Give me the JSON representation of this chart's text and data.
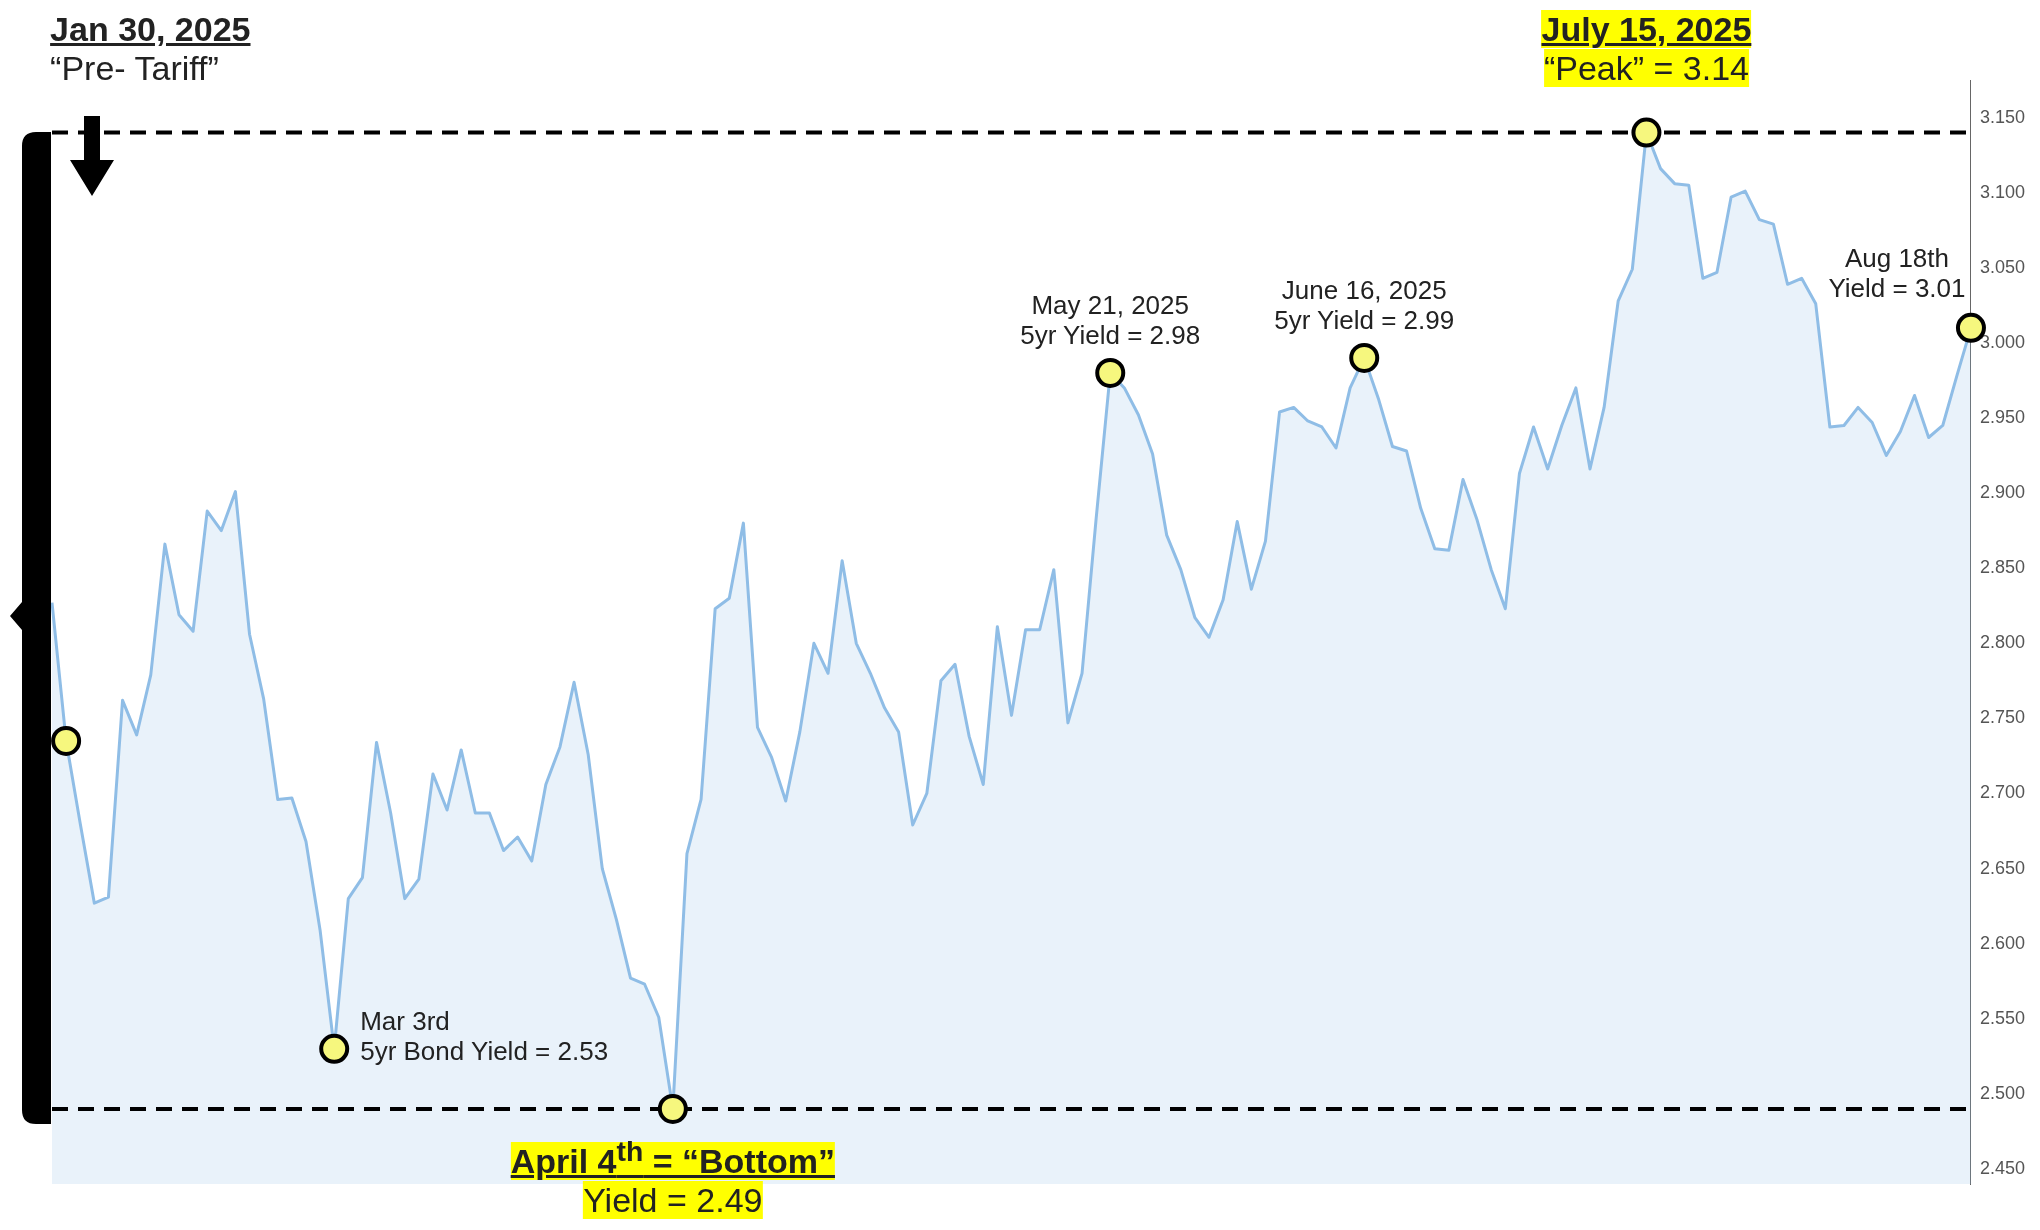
{
  "chart_data": {
    "type": "area",
    "categories": [
      null,
      null,
      null,
      null,
      null,
      null,
      null,
      null,
      null,
      null,
      null,
      null,
      null,
      null,
      null,
      null,
      null,
      null,
      null,
      null,
      null,
      null,
      null,
      null,
      null,
      null,
      null,
      null,
      null,
      null,
      null,
      null,
      null,
      null,
      null,
      null,
      null,
      null,
      null,
      null,
      null,
      null,
      null,
      null,
      null,
      null,
      null,
      null,
      null,
      null,
      null,
      null,
      null,
      null,
      null,
      null,
      null,
      null,
      null,
      null,
      null,
      null,
      null,
      null,
      null,
      null,
      null,
      null,
      null,
      null,
      null,
      null,
      null,
      null,
      null,
      null,
      null,
      null,
      null,
      null,
      null,
      null,
      null,
      null,
      null,
      null,
      null,
      null,
      null,
      null,
      null,
      null,
      null,
      null,
      null,
      null,
      null,
      null,
      null,
      null,
      null,
      null,
      null,
      null,
      null,
      null,
      null,
      null,
      null,
      null,
      null,
      null,
      null,
      null,
      null,
      null,
      null,
      null,
      null,
      null,
      null,
      null,
      null,
      null,
      null,
      null,
      null,
      null,
      null,
      null,
      null,
      null,
      null,
      null,
      null,
      null,
      null
    ],
    "series": [
      {
        "color": "#8fbde6",
        "values": [
          2.827,
          2.735,
          2.68,
          2.627,
          2.631,
          2.762,
          2.739,
          2.779,
          2.866,
          2.819,
          2.808,
          2.888,
          2.875,
          2.901,
          2.806,
          2.763,
          2.696,
          2.697,
          2.668,
          2.609,
          2.53,
          2.63,
          2.644,
          2.734,
          2.687,
          2.63,
          2.643,
          2.713,
          2.689,
          2.729,
          2.687,
          2.687,
          2.662,
          2.671,
          2.655,
          2.706,
          2.731,
          2.774,
          2.726,
          2.65,
          2.616,
          2.577,
          2.573,
          2.551,
          2.49,
          2.66,
          2.696,
          2.823,
          2.83,
          2.88,
          2.744,
          2.724,
          2.695,
          2.741,
          2.8,
          2.78,
          2.855,
          2.8,
          2.78,
          2.757,
          2.741,
          2.679,
          2.7,
          2.775,
          2.786,
          2.738,
          2.706,
          2.811,
          2.752,
          2.809,
          2.809,
          2.849,
          2.747,
          2.78,
          2.883,
          2.98,
          2.97,
          2.952,
          2.926,
          2.872,
          2.849,
          2.817,
          2.804,
          2.829,
          2.881,
          2.836,
          2.868,
          2.954,
          2.957,
          2.948,
          2.944,
          2.93,
          2.97,
          2.99,
          2.963,
          2.931,
          2.928,
          2.89,
          2.863,
          2.862,
          2.909,
          2.882,
          2.849,
          2.823,
          2.913,
          2.944,
          2.916,
          2.945,
          2.97,
          2.916,
          2.957,
          3.028,
          3.049,
          3.14,
          3.116,
          3.106,
          3.105,
          3.043,
          3.047,
          3.097,
          3.101,
          3.082,
          3.079,
          3.039,
          3.043,
          3.026,
          2.944,
          2.945,
          2.957,
          2.947,
          2.925,
          2.941,
          2.965,
          2.937,
          2.945,
          2.978,
          3.01
        ]
      }
    ],
    "ylim": [
      2.44,
      3.175
    ],
    "yticks": [
      {
        "value": 2.45,
        "label": "2.450"
      },
      {
        "value": 2.5,
        "label": "2.500"
      },
      {
        "value": 2.55,
        "label": "2.550"
      },
      {
        "value": 2.6,
        "label": "2.600"
      },
      {
        "value": 2.65,
        "label": "2.650"
      },
      {
        "value": 2.7,
        "label": "2.700"
      },
      {
        "value": 2.75,
        "label": "2.750"
      },
      {
        "value": 2.8,
        "label": "2.800"
      },
      {
        "value": 2.85,
        "label": "2.850"
      },
      {
        "value": 2.9,
        "label": "2.900"
      },
      {
        "value": 2.95,
        "label": "2.950"
      },
      {
        "value": 3.0,
        "label": "3.000"
      },
      {
        "value": 3.05,
        "label": "3.050"
      },
      {
        "value": 3.1,
        "label": "3.100"
      },
      {
        "value": 3.15,
        "label": "3.150"
      }
    ],
    "tick_labels": "y",
    "grid": false,
    "legend": false,
    "marker": "none",
    "ref_lines": [
      {
        "axis": "y",
        "value": 3.14,
        "color": "#000000",
        "line_style": "dashed"
      },
      {
        "axis": "y",
        "value": 2.49,
        "color": "#000000",
        "line_style": "dashed"
      }
    ],
    "annotations": [
      "Jan 30, 2025\n“Pre- Tariff”",
      "Mar 3rd\n5yr Bond Yield = 2.53",
      {
        "text": "April 4$^{th}$ = “Bottom”\nYield = 2.49",
        "y": 2.49
      },
      {
        "text": "May 21, 2025\n5yr Yield = 2.98",
        "y": 2.98
      },
      {
        "text": "June 16, 2025\n5yr Yield = 2.99",
        "y": 2.99
      },
      {
        "text": "July 15, 2025\n“Peak” = 3.14",
        "y": 3.14
      },
      "Aug 18th\nYield = 3.01"
    ]
  }
}
